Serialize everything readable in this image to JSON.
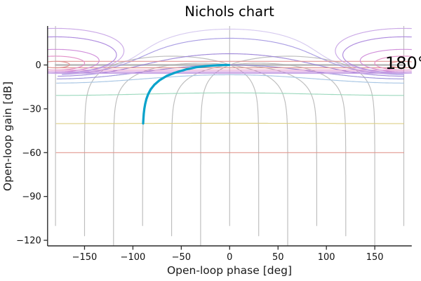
{
  "title": "Nichols chart",
  "annotation": {
    "text": "180°",
    "phase_deg": 162,
    "gain_db": -2
  },
  "axes": {
    "xlabel": "Open-loop phase [deg]",
    "ylabel": "Open-loop gain [dB]",
    "xticks": [
      -150,
      -100,
      -50,
      0,
      50,
      100,
      150
    ],
    "yticks": [
      0,
      -30,
      -60,
      -90,
      -120
    ]
  },
  "chart_data": {
    "type": "line",
    "title": "Nichols chart",
    "xlabel": "Open-loop phase [deg]",
    "ylabel": "Open-loop gain [dB]",
    "xlim": [
      -188.2,
      188.2
    ],
    "ylim": [
      -123.8,
      26.7
    ],
    "xticks": [
      -150,
      -100,
      -50,
      0,
      50,
      100,
      150
    ],
    "yticks": [
      0,
      -30,
      -60,
      -90,
      -120
    ],
    "grid_on": false,
    "legend": "none",
    "nichols_grid": {
      "phase_contours_deg": [
        -180,
        -150,
        -120,
        -90,
        -60,
        -30,
        0,
        30,
        60,
        90,
        120,
        150,
        180
      ],
      "phase_contour_color": "#b6b6b6",
      "zero_db_line_color": "#b4b4b4",
      "open_gain_contours_db": [
        -0.5,
        -1,
        -3,
        -6,
        -10,
        -20,
        -40,
        -60
      ],
      "loop_gain_contours_db": [
        12,
        6,
        3,
        1,
        0.5
      ],
      "contour_colors": {
        "12": "#df8d8d",
        "6": "#e18cc6",
        "3": "#cf8ad9",
        "1": "#ab86dd",
        "0.5": "#c8a4e6",
        "-0.5": "#d5c8ef",
        "-1": "#a79ae3",
        "-3": "#9c85d8",
        "-6": "#968ed9",
        "-10": "#a3c3e3",
        "-20": "#98d7bb",
        "-40": "#dbce82",
        "-60": "#e2938a"
      }
    },
    "series": [
      {
        "name": "open-loop response",
        "color": "#0ba3cb",
        "x_phase_deg": [
          -0.57,
          -0.84,
          -1.23,
          -1.81,
          -2.66,
          -3.9,
          -5.71,
          -8.35,
          -12.16,
          -17.55,
          -24.9,
          -34.26,
          -45.0,
          -55.73,
          -65.1,
          -72.45,
          -77.84,
          -81.65,
          -84.29,
          -86.1,
          -87.34,
          -88.19,
          -88.77,
          -89.16,
          -89.43
        ],
        "y_gain_db": [
          0.0,
          0.0,
          0.0,
          0.0,
          -0.01,
          -0.02,
          -0.04,
          -0.09,
          -0.2,
          -0.41,
          -0.8,
          -1.49,
          -3.01,
          -5.08,
          -7.51,
          -10.41,
          -13.53,
          -16.75,
          -20.04,
          -23.36,
          -26.68,
          -30.0,
          -33.33,
          -36.67,
          -40.0
        ]
      }
    ],
    "annotations": [
      {
        "text": "180°",
        "x_phase_deg": 162,
        "y_gain_db": -2,
        "color": "#000000"
      }
    ]
  }
}
